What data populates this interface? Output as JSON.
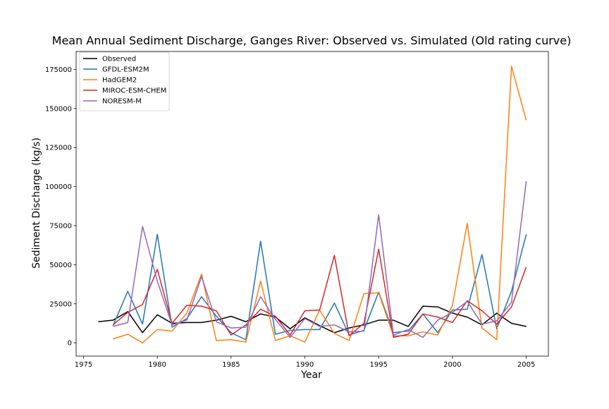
{
  "chart_data": {
    "type": "line",
    "title": "Mean Annual Sediment Discharge, Ganges River: Observed vs. Simulated (Old rating curve)",
    "xlabel": "Year",
    "ylabel": "Sediment Discharge (kg/s)",
    "xlim": [
      1974.5,
      2006.5
    ],
    "ylim": [
      -8500,
      186500
    ],
    "xticks": [
      1975,
      1980,
      1985,
      1990,
      1995,
      2000,
      2005
    ],
    "yticks": [
      0,
      25000,
      50000,
      75000,
      100000,
      125000,
      150000,
      175000
    ],
    "legend_position": "upper-left",
    "grid": false,
    "series": [
      {
        "name": "Observed",
        "color": "#000000",
        "x": [
          1976,
          1977,
          1978,
          1979,
          1980,
          1981,
          1982,
          1983,
          1984,
          1985,
          1986,
          1987,
          1988,
          1989,
          1990,
          1991,
          1992,
          1993,
          1994,
          1995,
          1996,
          1997,
          1998,
          1999,
          2000,
          2001,
          2002,
          2003,
          2004,
          2005
        ],
        "values": [
          13500,
          14500,
          20000,
          6500,
          18000,
          12500,
          13000,
          13000,
          14500,
          17000,
          13500,
          18500,
          16500,
          9000,
          16000,
          11000,
          6500,
          9500,
          11500,
          14500,
          14500,
          10500,
          23500,
          23000,
          19000,
          16500,
          11500,
          19000,
          12500,
          10500
        ]
      },
      {
        "name": "GFDL-ESM2M",
        "color": "#1f77b4",
        "x": [
          1977,
          1978,
          1979,
          1980,
          1981,
          1982,
          1983,
          1984,
          1985,
          1986,
          1987,
          1988,
          1989,
          1990,
          1991,
          1992,
          1993,
          1994,
          1995,
          1996,
          1997,
          1998,
          1999,
          2000,
          2001,
          2002,
          2003,
          2004,
          2005
        ],
        "values": [
          11000,
          33000,
          12000,
          69500,
          10000,
          15500,
          29500,
          17000,
          6500,
          2000,
          65000,
          5500,
          8000,
          8500,
          8500,
          25500,
          5000,
          8000,
          32500,
          6500,
          7500,
          18500,
          6500,
          21000,
          21500,
          56500,
          9000,
          33000,
          69500
        ]
      },
      {
        "name": "HadGEM2",
        "color": "#ff7f0e",
        "x": [
          1977,
          1978,
          1979,
          1980,
          1981,
          1982,
          1983,
          1984,
          1985,
          1986,
          1987,
          1988,
          1989,
          1990,
          1991,
          1992,
          1993,
          1994,
          1995,
          1996,
          1997,
          1998,
          1999,
          2000,
          2001,
          2002,
          2003,
          2004,
          2005
        ],
        "values": [
          2500,
          5500,
          0,
          8500,
          7500,
          19000,
          44000,
          1500,
          2000,
          500,
          39500,
          1500,
          4500,
          500,
          21000,
          6000,
          1500,
          31500,
          32000,
          4500,
          4500,
          7000,
          5000,
          24000,
          76500,
          9500,
          2000,
          177000,
          142500
        ]
      },
      {
        "name": "MIROC-ESM-CHEM",
        "color": "#d62728",
        "x": [
          1977,
          1978,
          1979,
          1980,
          1981,
          1982,
          1983,
          1984,
          1985,
          1986,
          1987,
          1988,
          1989,
          1990,
          1991,
          1992,
          1993,
          1994,
          1995,
          1996,
          1997,
          1998,
          1999,
          2000,
          2001,
          2002,
          2003,
          2004,
          2005
        ],
        "values": [
          11500,
          19500,
          24500,
          47000,
          12500,
          24000,
          23500,
          20500,
          5000,
          11500,
          21500,
          17000,
          5000,
          20500,
          21000,
          56000,
          4500,
          12500,
          60000,
          3500,
          5500,
          18500,
          16500,
          13000,
          27000,
          20500,
          12000,
          23000,
          48500
        ]
      },
      {
        "name": "NORESM-M",
        "color": "#9467bd",
        "x": [
          1977,
          1978,
          1979,
          1980,
          1981,
          1982,
          1983,
          1984,
          1985,
          1986,
          1987,
          1988,
          1989,
          1990,
          1991,
          1992,
          1993,
          1994,
          1995,
          1996,
          1997,
          1998,
          1999,
          2000,
          2001,
          2002,
          2003,
          2004,
          2005
        ],
        "values": [
          10500,
          13000,
          74500,
          39500,
          11500,
          14500,
          42500,
          13500,
          9500,
          10000,
          29500,
          15000,
          3500,
          15500,
          10500,
          11500,
          7000,
          7500,
          82000,
          5000,
          8500,
          3500,
          14500,
          19500,
          26500,
          12000,
          14000,
          26000,
          103500
        ]
      }
    ]
  }
}
